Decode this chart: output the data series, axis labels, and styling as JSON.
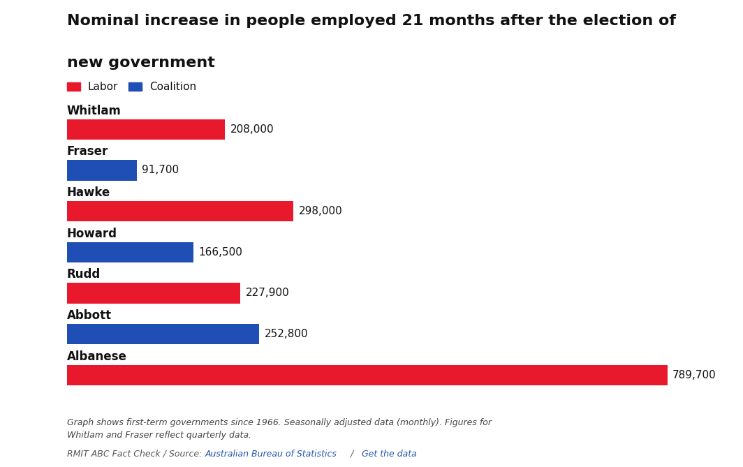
{
  "title_line1": "Nominal increase in people employed 21 months after the election of",
  "title_line2": "new government",
  "title_fontsize": 16,
  "categories": [
    "Whitlam",
    "Fraser",
    "Hawke",
    "Howard",
    "Rudd",
    "Abbott",
    "Albanese"
  ],
  "values": [
    208000,
    91700,
    298000,
    166500,
    227900,
    252800,
    789700
  ],
  "colors": [
    "#e8192c",
    "#1f4eb5",
    "#e8192c",
    "#1f4eb5",
    "#e8192c",
    "#1f4eb5",
    "#e8192c"
  ],
  "labor_color": "#e8192c",
  "coalition_color": "#1f4eb5",
  "label_color": "#111111",
  "labels": [
    "208,000",
    "91,700",
    "298,000",
    "166,500",
    "227,900",
    "252,800",
    "789,700"
  ],
  "bg_color": "#ffffff",
  "footer_line1": "Graph shows first-term governments since 1966. Seasonally adjusted data (monthly). Figures for",
  "footer_line2": "Whitlam and Fraser reflect quarterly data.",
  "source_prefix": "RMIT ABC Fact Check / Source: ",
  "source_link1": "Australian Bureau of Statistics",
  "source_sep": " / ",
  "source_link2": "Get the data",
  "source_link_color": "#2255aa",
  "source_text_color": "#555555",
  "xlim": [
    0,
    860000
  ],
  "bar_height": 0.5,
  "cat_fontsize": 12,
  "val_fontsize": 11,
  "legend_fontsize": 11,
  "footer_fontsize": 9,
  "source_fontsize": 9
}
